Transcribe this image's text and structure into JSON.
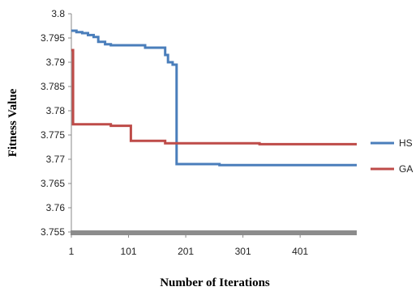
{
  "chart_data": {
    "type": "line",
    "title": "",
    "xlabel": "Number of Iterations",
    "ylabel": "Fitness Value",
    "xlim": [
      1,
      500
    ],
    "ylim": [
      3.755,
      3.8
    ],
    "x_ticks": [
      1,
      101,
      201,
      301,
      401
    ],
    "x_tick_labels": [
      "1",
      "101",
      "201",
      "301",
      "401"
    ],
    "y_ticks": [
      3.755,
      3.76,
      3.765,
      3.77,
      3.775,
      3.78,
      3.785,
      3.79,
      3.795,
      3.8
    ],
    "y_tick_labels": [
      "3.755",
      "3.76",
      "3.765",
      "3.77",
      "3.775",
      "3.78",
      "3.785",
      "3.79",
      "3.795",
      "3.8"
    ],
    "grid": false,
    "legend_position": "right",
    "series": [
      {
        "name": "HS",
        "color": "#4a7ebb",
        "x": [
          1,
          5,
          10,
          20,
          30,
          40,
          48,
          60,
          70,
          100,
          130,
          160,
          165,
          170,
          178,
          185,
          250,
          260,
          500
        ],
        "y": [
          3.7965,
          3.7965,
          3.7962,
          3.796,
          3.7956,
          3.7952,
          3.7942,
          3.7937,
          3.7935,
          3.7935,
          3.793,
          3.793,
          3.7915,
          3.79,
          3.7895,
          3.769,
          3.769,
          3.7688,
          3.7688
        ]
      },
      {
        "name": "GA",
        "color": "#be4b48",
        "x": [
          1,
          2,
          4,
          10,
          60,
          70,
          100,
          105,
          150,
          165,
          320,
          330,
          500
        ],
        "y": [
          3.7925,
          3.7925,
          3.7772,
          3.7772,
          3.7772,
          3.7769,
          3.7769,
          3.7738,
          3.7738,
          3.7733,
          3.7733,
          3.7731,
          3.7731
        ]
      }
    ]
  }
}
